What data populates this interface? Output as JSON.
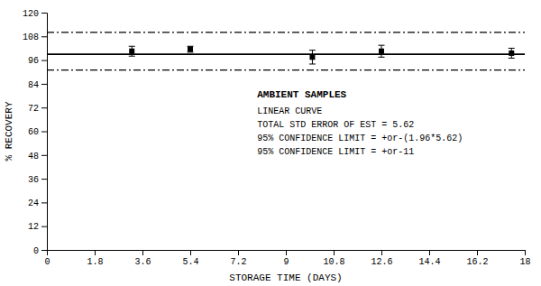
{
  "chart_data": {
    "type": "scatter",
    "xlabel": "STORAGE TIME (DAYS)",
    "ylabel": "% RECOVERY",
    "x": [
      3.2,
      5.4,
      10.0,
      12.6,
      17.5
    ],
    "values": [
      100.5,
      101.5,
      97.5,
      100.5,
      99.5
    ],
    "error_upper": [
      2.5,
      1.5,
      3.5,
      3.0,
      2.5
    ],
    "error_lower": [
      2.5,
      1.5,
      3.5,
      3.0,
      2.5
    ],
    "color": "#000000",
    "marker": "square",
    "xlim": [
      0.0,
      18.0
    ],
    "ylim": [
      0,
      120
    ],
    "xticks": [
      0,
      1.8,
      3.6,
      5.4,
      7.2,
      9,
      10.8,
      12.6,
      14.4,
      16.2,
      18
    ],
    "yticks": [
      0,
      12,
      24,
      36,
      48,
      60,
      72,
      84,
      96,
      108,
      120
    ],
    "grid": false,
    "reference_lines": [
      {
        "y": 99.0,
        "line_style": "solid"
      },
      {
        "y": 110.0,
        "line_style": "dashdot"
      },
      {
        "y": 91.0,
        "line_style": "dashdot"
      }
    ],
    "annotation_title": "AMBIENT SAMPLES",
    "annotation_lines": [
      "LINEAR CURVE",
      "TOTAL STD ERROR OF EST = 5.62",
      "95% CONFIDENCE LIMIT = +or-(1.96*5.62)",
      "95% CONFIDENCE LIMIT = +or-11"
    ]
  }
}
